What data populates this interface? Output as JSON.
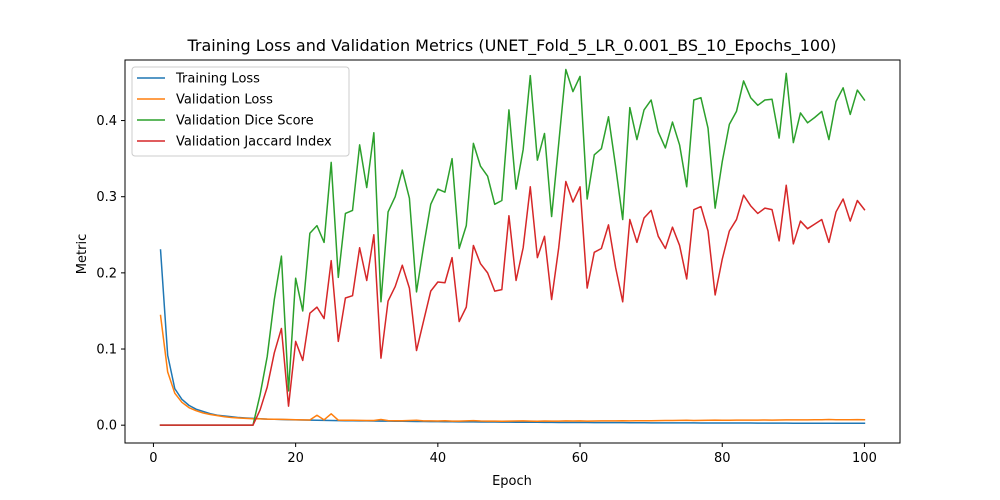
{
  "chart_data": {
    "type": "line",
    "title": "Training Loss and Validation Metrics (UNET_Fold_5_LR_0.001_BS_10_Epochs_100)",
    "xlabel": "Epoch",
    "ylabel": "Metric",
    "xlim": [
      -4,
      105
    ],
    "ylim": [
      -0.0234,
      0.4795
    ],
    "xticks": [
      0,
      20,
      40,
      60,
      80,
      100
    ],
    "yticks": [
      0.0,
      0.1,
      0.2,
      0.3,
      0.4
    ],
    "xtick_labels": [
      "0",
      "20",
      "40",
      "60",
      "80",
      "100"
    ],
    "ytick_labels": [
      "0.0",
      "0.1",
      "0.2",
      "0.3",
      "0.4"
    ],
    "legend_position": "upper-left",
    "grid": false,
    "series": [
      {
        "name": "Training Loss",
        "color": "#1f77b4",
        "values": [
          0.23,
          0.092,
          0.048,
          0.034,
          0.026,
          0.021,
          0.018,
          0.015,
          0.013,
          0.012,
          0.011,
          0.01,
          0.0095,
          0.009,
          0.0085,
          0.008,
          0.0078,
          0.0075,
          0.0072,
          0.007,
          0.0068,
          0.0066,
          0.0065,
          0.0063,
          0.0062,
          0.006,
          0.0059,
          0.0058,
          0.0057,
          0.0056,
          0.0055,
          0.0054,
          0.0053,
          0.0052,
          0.0051,
          0.005,
          0.0049,
          0.0048,
          0.0047,
          0.0046,
          0.0045,
          0.0045,
          0.0044,
          0.0043,
          0.0043,
          0.0042,
          0.0041,
          0.0041,
          0.004,
          0.004,
          0.0039,
          0.0039,
          0.0038,
          0.0038,
          0.0037,
          0.0037,
          0.0036,
          0.0036,
          0.0035,
          0.0035,
          0.0035,
          0.0034,
          0.0034,
          0.0033,
          0.0033,
          0.0033,
          0.0032,
          0.0032,
          0.0032,
          0.0031,
          0.0031,
          0.0031,
          0.003,
          0.003,
          0.003,
          0.003,
          0.0029,
          0.0029,
          0.0029,
          0.0029,
          0.0028,
          0.0028,
          0.0028,
          0.0028,
          0.0027,
          0.0027,
          0.0027,
          0.0027,
          0.0027,
          0.0026,
          0.0026,
          0.0026,
          0.0026,
          0.0026,
          0.0025,
          0.0025,
          0.0025,
          0.0025,
          0.0025,
          0.0025
        ]
      },
      {
        "name": "Validation Loss",
        "color": "#ff7f0e",
        "values": [
          0.144,
          0.07,
          0.042,
          0.03,
          0.023,
          0.019,
          0.016,
          0.014,
          0.0125,
          0.011,
          0.01,
          0.0095,
          0.009,
          0.0085,
          0.0082,
          0.008,
          0.0078,
          0.0076,
          0.0074,
          0.0072,
          0.007,
          0.0068,
          0.013,
          0.007,
          0.015,
          0.0066,
          0.0065,
          0.0064,
          0.0063,
          0.0062,
          0.0061,
          0.0075,
          0.006,
          0.0059,
          0.0058,
          0.0062,
          0.0064,
          0.0057,
          0.0056,
          0.0055,
          0.0058,
          0.0054,
          0.0053,
          0.0057,
          0.006,
          0.0055,
          0.0054,
          0.0053,
          0.0052,
          0.0054,
          0.0055,
          0.0056,
          0.0053,
          0.0052,
          0.0055,
          0.0054,
          0.0053,
          0.0056,
          0.0055,
          0.0056,
          0.0054,
          0.0055,
          0.0056,
          0.0057,
          0.0056,
          0.0058,
          0.0057,
          0.0058,
          0.0059,
          0.0058,
          0.006,
          0.0061,
          0.0062,
          0.0063,
          0.0064,
          0.0062,
          0.0063,
          0.0064,
          0.0066,
          0.0065,
          0.0064,
          0.0066,
          0.0067,
          0.0066,
          0.0067,
          0.0068,
          0.0067,
          0.0068,
          0.0069,
          0.007,
          0.0069,
          0.007,
          0.0071,
          0.0072,
          0.0075,
          0.0072,
          0.0071,
          0.0072,
          0.0073,
          0.0072
        ]
      },
      {
        "name": "Validation Dice Score",
        "color": "#2ca02c",
        "values": [
          0.0,
          0.0,
          0.0,
          0.0,
          0.0,
          0.0,
          0.0,
          0.0,
          0.0,
          0.0,
          0.0,
          0.0,
          0.0,
          0.0,
          0.04,
          0.09,
          0.165,
          0.222,
          0.045,
          0.193,
          0.15,
          0.252,
          0.262,
          0.24,
          0.345,
          0.194,
          0.278,
          0.282,
          0.368,
          0.312,
          0.384,
          0.162,
          0.28,
          0.3,
          0.335,
          0.298,
          0.175,
          0.235,
          0.29,
          0.31,
          0.306,
          0.35,
          0.232,
          0.262,
          0.37,
          0.34,
          0.327,
          0.29,
          0.295,
          0.414,
          0.31,
          0.362,
          0.459,
          0.348,
          0.383,
          0.274,
          0.37,
          0.467,
          0.438,
          0.458,
          0.297,
          0.355,
          0.363,
          0.405,
          0.34,
          0.27,
          0.417,
          0.375,
          0.414,
          0.427,
          0.385,
          0.364,
          0.398,
          0.368,
          0.313,
          0.427,
          0.43,
          0.39,
          0.285,
          0.346,
          0.395,
          0.412,
          0.452,
          0.43,
          0.42,
          0.427,
          0.428,
          0.377,
          0.462,
          0.371,
          0.41,
          0.397,
          0.404,
          0.412,
          0.375,
          0.425,
          0.443,
          0.408,
          0.44,
          0.427
        ]
      },
      {
        "name": "Validation Jaccard Index",
        "color": "#d62728",
        "values": [
          0.0,
          0.0,
          0.0,
          0.0,
          0.0,
          0.0,
          0.0,
          0.0,
          0.0,
          0.0,
          0.0,
          0.0,
          0.0,
          0.0,
          0.02,
          0.05,
          0.095,
          0.127,
          0.025,
          0.11,
          0.085,
          0.147,
          0.155,
          0.14,
          0.216,
          0.11,
          0.167,
          0.17,
          0.233,
          0.19,
          0.25,
          0.088,
          0.163,
          0.182,
          0.21,
          0.18,
          0.098,
          0.137,
          0.176,
          0.188,
          0.187,
          0.22,
          0.136,
          0.155,
          0.236,
          0.212,
          0.2,
          0.176,
          0.178,
          0.275,
          0.19,
          0.233,
          0.313,
          0.22,
          0.248,
          0.165,
          0.233,
          0.32,
          0.293,
          0.313,
          0.18,
          0.227,
          0.232,
          0.263,
          0.207,
          0.162,
          0.27,
          0.24,
          0.272,
          0.282,
          0.248,
          0.232,
          0.26,
          0.236,
          0.192,
          0.283,
          0.287,
          0.255,
          0.171,
          0.218,
          0.255,
          0.27,
          0.302,
          0.288,
          0.278,
          0.285,
          0.283,
          0.242,
          0.315,
          0.238,
          0.268,
          0.258,
          0.264,
          0.27,
          0.24,
          0.28,
          0.297,
          0.268,
          0.295,
          0.283
        ]
      }
    ]
  }
}
